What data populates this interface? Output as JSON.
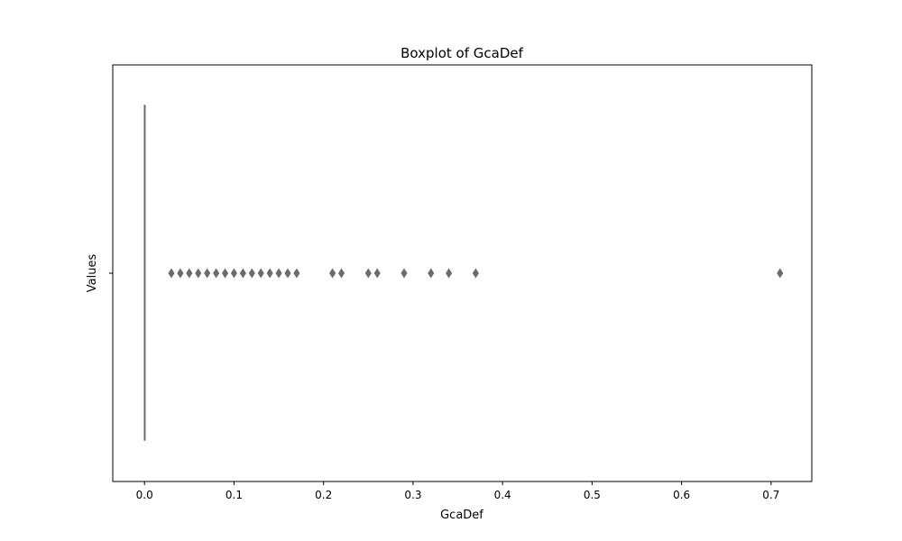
{
  "chart_data": {
    "type": "boxplot",
    "title": "Boxplot of GcaDef",
    "xlabel": "GcaDef",
    "ylabel": "Values",
    "xlim": [
      -0.0355,
      0.7455
    ],
    "x_ticks": [
      0.0,
      0.1,
      0.2,
      0.3,
      0.4,
      0.5,
      0.6,
      0.7
    ],
    "x_tick_labels": [
      "0.0",
      "0.1",
      "0.2",
      "0.3",
      "0.4",
      "0.5",
      "0.6",
      "0.7"
    ],
    "grid": false,
    "legend": "none",
    "box": {
      "q1": 0.0,
      "median": 0.0,
      "q3": 0.0,
      "whisker_low": 0.0,
      "whisker_high": 0.0
    },
    "outliers": [
      0.03,
      0.04,
      0.05,
      0.06,
      0.07,
      0.08,
      0.09,
      0.1,
      0.11,
      0.12,
      0.13,
      0.14,
      0.15,
      0.16,
      0.17,
      0.21,
      0.22,
      0.25,
      0.26,
      0.29,
      0.32,
      0.34,
      0.37,
      0.71
    ],
    "colors": {
      "box_line": "#6b6b6b",
      "outlier_fill": "#6b6b6b",
      "axes": "#000000"
    }
  }
}
